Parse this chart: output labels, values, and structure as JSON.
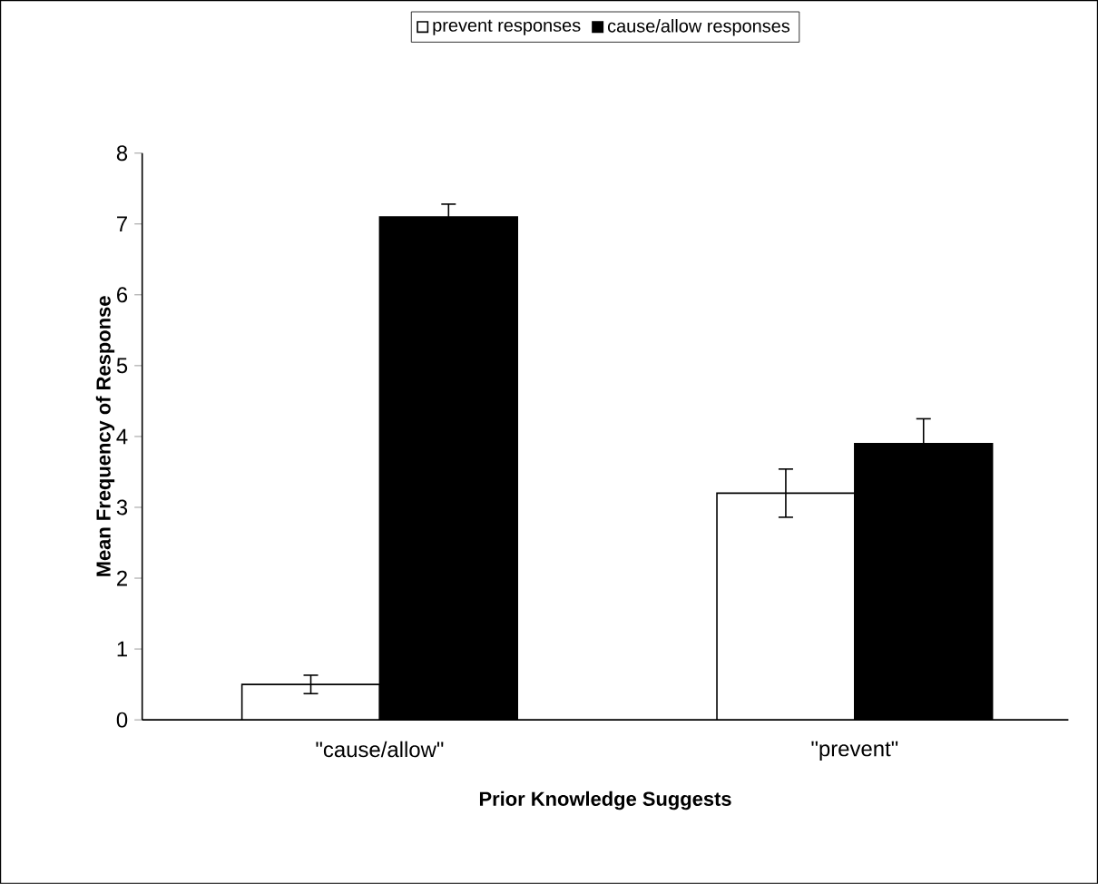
{
  "chart_data": {
    "type": "bar",
    "xlabel": "Prior Knowledge Suggests",
    "ylabel": "Mean Frequency of Response",
    "categories": [
      "\"cause/allow\"",
      "\"prevent\""
    ],
    "series": [
      {
        "name": "prevent responses",
        "color": "#ffffff",
        "values": [
          0.5,
          3.2
        ],
        "errors": [
          0.13,
          0.34
        ]
      },
      {
        "name": "cause/allow  responses",
        "color": "#000000",
        "values": [
          7.1,
          3.9
        ],
        "errors": [
          0.18,
          0.35
        ]
      }
    ],
    "ylim": [
      0,
      8
    ],
    "yticks": [
      0,
      1,
      2,
      3,
      4,
      5,
      6,
      7,
      8
    ],
    "grid": false,
    "legend": "top"
  }
}
